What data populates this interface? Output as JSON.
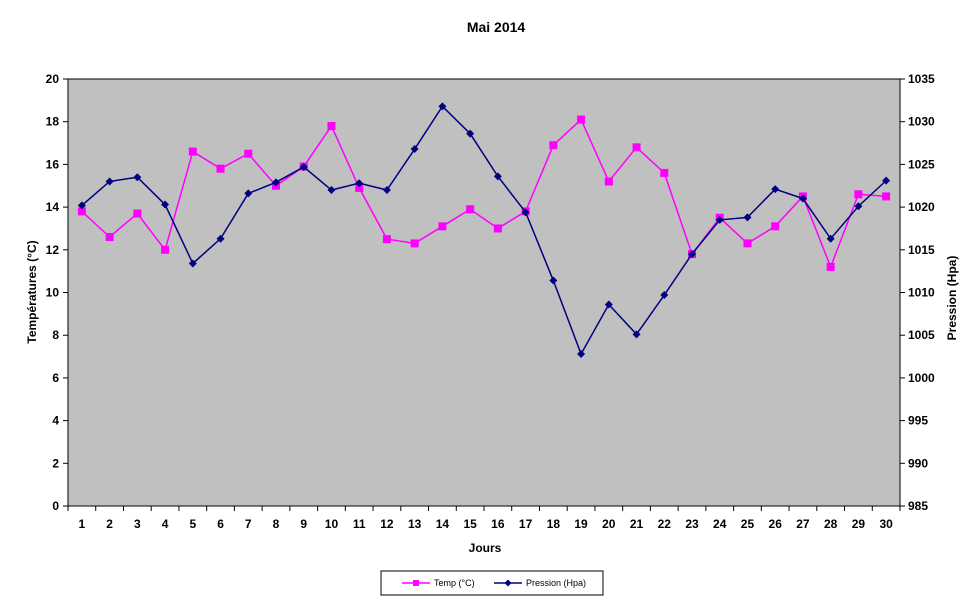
{
  "chart_data": {
    "type": "line",
    "title": "Mai 2014",
    "xlabel": "Jours",
    "ylabel_left": "Températures (°C)",
    "ylabel_right": "Pression (Hpa)",
    "x": [
      1,
      2,
      3,
      4,
      5,
      6,
      7,
      8,
      9,
      10,
      11,
      12,
      13,
      14,
      15,
      16,
      17,
      18,
      19,
      20,
      21,
      22,
      23,
      24,
      25,
      26,
      27,
      28,
      29,
      30
    ],
    "y_left_range": [
      0,
      20
    ],
    "y_left_ticks": [
      0,
      2,
      4,
      6,
      8,
      10,
      12,
      14,
      16,
      18,
      20
    ],
    "y_right_range": [
      985,
      1035
    ],
    "y_right_ticks": [
      985,
      990,
      995,
      1000,
      1005,
      1010,
      1015,
      1020,
      1025,
      1030,
      1035
    ],
    "grid": false,
    "plot_background": "#c0c0c0",
    "legend_position": "bottom",
    "series": [
      {
        "name": "Temp (°C)",
        "axis": "left",
        "color": "#ff00ff",
        "marker": "square",
        "values": [
          13.8,
          12.6,
          13.7,
          12.0,
          16.6,
          15.8,
          16.5,
          15.0,
          15.9,
          17.8,
          14.9,
          12.5,
          12.3,
          13.1,
          13.9,
          13.0,
          13.8,
          16.9,
          18.1,
          15.2,
          16.8,
          15.6,
          11.8,
          13.5,
          12.3,
          13.1,
          14.5,
          11.2,
          14.6,
          14.5
        ]
      },
      {
        "name": "Pression (Hpa)",
        "axis": "right",
        "color": "#000080",
        "marker": "diamond",
        "values": [
          1020.2,
          1023.0,
          1023.5,
          1020.3,
          1013.4,
          1016.3,
          1021.6,
          1022.9,
          1024.7,
          1022.0,
          1022.8,
          1022.0,
          1026.8,
          1031.8,
          1028.6,
          1023.6,
          1019.4,
          1011.4,
          1002.8,
          1008.6,
          1005.1,
          1009.7,
          1014.5,
          1018.5,
          1018.8,
          1022.1,
          1021.0,
          1016.3,
          1020.1,
          1023.1
        ]
      }
    ]
  }
}
